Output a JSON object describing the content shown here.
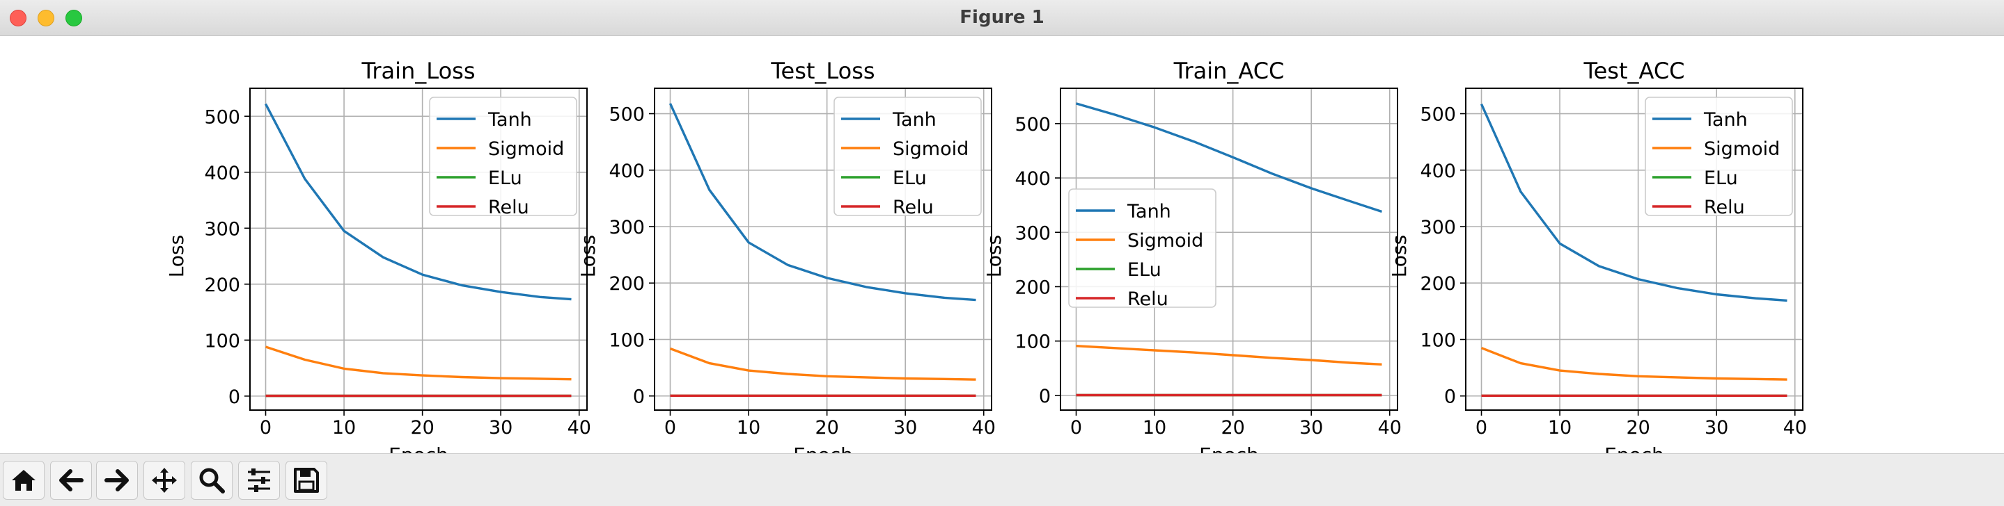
{
  "window": {
    "title": "Figure 1"
  },
  "toolbar": {
    "buttons": [
      {
        "name": "home-button",
        "icon": "home-icon"
      },
      {
        "name": "back-button",
        "icon": "arrow-left-icon"
      },
      {
        "name": "forward-button",
        "icon": "arrow-right-icon"
      },
      {
        "name": "pan-button",
        "icon": "move-icon"
      },
      {
        "name": "zoom-button",
        "icon": "magnifier-icon"
      },
      {
        "name": "configure-subplots-button",
        "icon": "sliders-icon"
      },
      {
        "name": "save-button",
        "icon": "floppy-disk-icon"
      }
    ]
  },
  "colors": {
    "Tanh": "#1f77b4",
    "Sigmoid": "#ff7f0e",
    "ELu": "#2ca02c",
    "Relu": "#d62728"
  },
  "chart_data": [
    {
      "type": "line",
      "title": "Train_Loss",
      "xlabel": "Epoch",
      "ylabel": "Loss",
      "xlim": [
        -2,
        41
      ],
      "ylim": [
        -25,
        550
      ],
      "xticks": [
        0,
        10,
        20,
        30,
        40
      ],
      "yticks": [
        0,
        100,
        200,
        300,
        400,
        500
      ],
      "grid": true,
      "legend": "upper-right",
      "x": [
        0,
        5,
        10,
        15,
        20,
        25,
        30,
        35,
        39
      ],
      "series": [
        {
          "name": "Tanh",
          "values": [
            522,
            388,
            295,
            248,
            217,
            198,
            186,
            177,
            173
          ]
        },
        {
          "name": "Sigmoid",
          "values": [
            88,
            65,
            49,
            41,
            37,
            34,
            32,
            31,
            30
          ]
        },
        {
          "name": "ELu",
          "values": [
            0.5,
            0.5,
            0.5,
            0.5,
            0.5,
            0.5,
            0.5,
            0.5,
            0.5
          ]
        },
        {
          "name": "Relu",
          "values": [
            0.5,
            0.5,
            0.5,
            0.5,
            0.5,
            0.5,
            0.5,
            0.5,
            0.5
          ]
        }
      ]
    },
    {
      "type": "line",
      "title": "Test_Loss",
      "xlabel": "Epoch",
      "ylabel": "Loss",
      "xlim": [
        -2,
        41
      ],
      "ylim": [
        -25,
        545
      ],
      "xticks": [
        0,
        10,
        20,
        30,
        40
      ],
      "yticks": [
        0,
        100,
        200,
        300,
        400,
        500
      ],
      "grid": true,
      "legend": "upper-right",
      "x": [
        0,
        5,
        10,
        15,
        20,
        25,
        30,
        35,
        39
      ],
      "series": [
        {
          "name": "Tanh",
          "values": [
            518,
            365,
            272,
            232,
            209,
            193,
            182,
            174,
            170
          ]
        },
        {
          "name": "Sigmoid",
          "values": [
            84,
            58,
            45,
            39,
            35,
            33,
            31,
            30,
            29
          ]
        },
        {
          "name": "ELu",
          "values": [
            0.5,
            0.5,
            0.5,
            0.5,
            0.5,
            0.5,
            0.5,
            0.5,
            0.5
          ]
        },
        {
          "name": "Relu",
          "values": [
            0.5,
            0.5,
            0.5,
            0.5,
            0.5,
            0.5,
            0.5,
            0.5,
            0.5
          ]
        }
      ]
    },
    {
      "type": "line",
      "title": "Train_ACC",
      "xlabel": "Epoch",
      "ylabel": "Loss",
      "xlim": [
        -2,
        41
      ],
      "ylim": [
        -27,
        565
      ],
      "xticks": [
        0,
        10,
        20,
        30,
        40
      ],
      "yticks": [
        0,
        100,
        200,
        300,
        400,
        500
      ],
      "grid": true,
      "legend": "center-left",
      "x": [
        0,
        5,
        10,
        15,
        20,
        25,
        30,
        35,
        39
      ],
      "series": [
        {
          "name": "Tanh",
          "values": [
            537,
            516,
            493,
            467,
            438,
            408,
            381,
            357,
            338
          ]
        },
        {
          "name": "Sigmoid",
          "values": [
            91,
            87,
            83,
            79,
            74,
            69,
            65,
            60,
            57
          ]
        },
        {
          "name": "ELu",
          "values": [
            0.5,
            0.5,
            0.5,
            0.5,
            0.5,
            0.5,
            0.5,
            0.5,
            0.5
          ]
        },
        {
          "name": "Relu",
          "values": [
            0.5,
            0.5,
            0.5,
            0.5,
            0.5,
            0.5,
            0.5,
            0.5,
            0.5
          ]
        }
      ]
    },
    {
      "type": "line",
      "title": "Test_ACC",
      "xlabel": "Epoch",
      "ylabel": "Loss",
      "xlim": [
        -2,
        41
      ],
      "ylim": [
        -25,
        545
      ],
      "xticks": [
        0,
        10,
        20,
        30,
        40
      ],
      "yticks": [
        0,
        100,
        200,
        300,
        400,
        500
      ],
      "grid": true,
      "legend": "upper-right",
      "x": [
        0,
        5,
        10,
        15,
        20,
        25,
        30,
        35,
        39
      ],
      "series": [
        {
          "name": "Tanh",
          "values": [
            517,
            362,
            270,
            230,
            207,
            191,
            180,
            173,
            169
          ]
        },
        {
          "name": "Sigmoid",
          "values": [
            85,
            58,
            45,
            39,
            35,
            33,
            31,
            30,
            29
          ]
        },
        {
          "name": "ELu",
          "values": [
            0.5,
            0.5,
            0.5,
            0.5,
            0.5,
            0.5,
            0.5,
            0.5,
            0.5
          ]
        },
        {
          "name": "Relu",
          "values": [
            0.5,
            0.5,
            0.5,
            0.5,
            0.5,
            0.5,
            0.5,
            0.5,
            0.5
          ]
        }
      ]
    }
  ]
}
